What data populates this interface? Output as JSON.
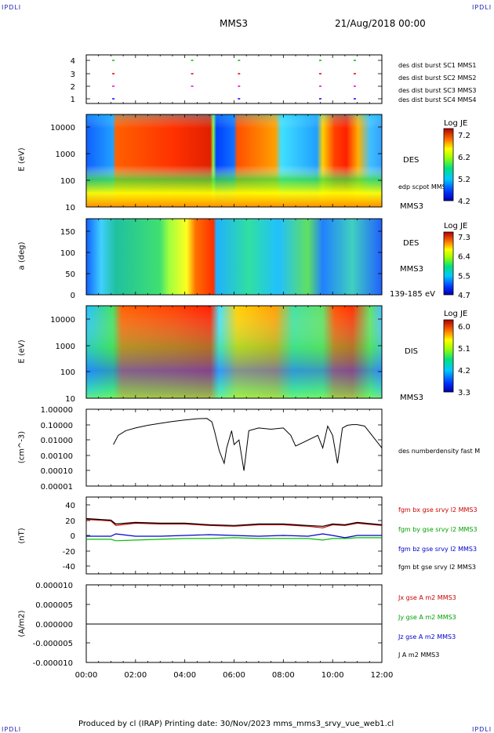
{
  "header": {
    "corner_left": "IPDLI",
    "corner_right": "IPDLI",
    "spacecraft": "MMS3",
    "date": "21/Aug/2018 00:00"
  },
  "footer": {
    "text": "Produced by cl (IRAP)   Printing date: 30/Nov/2023   mms_mms3_srvy_vue_web1.cl",
    "corner_left": "IPDLI",
    "corner_right": "IPDLI"
  },
  "time_axis": {
    "ticks": [
      "00:00",
      "02:00",
      "04:00",
      "06:00",
      "08:00",
      "10:00",
      "12:00"
    ],
    "range_hours": [
      0,
      12
    ]
  },
  "colors": {
    "c1": "#0000ff",
    "c2": "#e000e0",
    "c3": "#e00000",
    "c4": "#00c000",
    "bx": "#cc0000",
    "by": "#00c000",
    "bz": "#0000cc",
    "bt": "#000000"
  },
  "panels": {
    "burst": {
      "yticks": [
        "4",
        "3",
        "2",
        "1"
      ],
      "legend": [
        "des dist burst SC1 MMS1",
        "des dist burst SC2 MMS2",
        "des dist burst SC3 MMS3",
        "des dist burst SC4 MMS4"
      ]
    },
    "des_energy": {
      "ylabel": "E (eV)",
      "yticks": [
        "10000",
        "1000",
        "100",
        "10"
      ],
      "label": "DES",
      "label2": "edp scpot MMS3",
      "sc": "MMS3",
      "colorbar": {
        "title": "Log JE",
        "ticks": [
          "7.2",
          "6.2",
          "5.2",
          "4.2"
        ]
      }
    },
    "des_pitch": {
      "ylabel": "a (deg)",
      "yticks": [
        "150",
        "100",
        "50",
        "0"
      ],
      "label": "DES",
      "sc": "MMS3",
      "energy": "139-185 eV",
      "colorbar": {
        "title": "Log JE",
        "ticks": [
          "7.3",
          "6.4",
          "5.5",
          "4.7"
        ]
      }
    },
    "dis_energy": {
      "ylabel": "E (eV)",
      "yticks": [
        "10000",
        "1000",
        "100",
        "10"
      ],
      "label": "DIS",
      "sc": "MMS3",
      "colorbar": {
        "title": "Log JE",
        "ticks": [
          "6.0",
          "5.1",
          "4.2",
          "3.3"
        ]
      }
    },
    "density": {
      "ylabel": "(cm^-3)",
      "yticks": [
        "1.00000",
        "0.10000",
        "0.01000",
        "0.00100",
        "0.00010",
        "0.00001"
      ],
      "legend": "des numberdensity fast M"
    },
    "bfield": {
      "ylabel": "(nT)",
      "yticks": [
        "40",
        "20",
        "0",
        "-20",
        "-40"
      ],
      "legend": [
        "fgm bx gse srvy l2 MMS3",
        "fgm by gse srvy l2 MMS3",
        "fgm bz gse srvy l2 MMS3",
        "fgm bt gse srvy l2 MMS3"
      ]
    },
    "current": {
      "ylabel": "(A/m2)",
      "yticks": [
        "0.000010",
        "0.000005",
        "0.000000",
        "-0.000005",
        "-0.000010"
      ],
      "legend": [
        "Jx gse A m2 MMS3",
        "Jy gse A m2 MMS3",
        "Jz gse A m2 MMS3",
        "J A m2 MMS3"
      ]
    }
  },
  "chart_data": [
    {
      "type": "scatter",
      "panel": "burst",
      "xlabel": "",
      "ylabel": "",
      "series": [
        {
          "name": "des dist burst SC1 MMS1",
          "y": 1,
          "x": [
            1.1,
            6.2,
            9.5,
            10.9
          ]
        },
        {
          "name": "des dist burst SC2 MMS2",
          "y": 2,
          "x": [
            1.1,
            4.3,
            6.2,
            9.5,
            10.9
          ]
        },
        {
          "name": "des dist burst SC3 MMS3",
          "y": 3,
          "x": [
            1.1,
            4.3,
            6.2,
            9.5,
            10.9
          ]
        },
        {
          "name": "des dist burst SC4 MMS4",
          "y": 4,
          "x": [
            1.1,
            4.3,
            6.2,
            9.5,
            10.9
          ]
        }
      ]
    },
    {
      "type": "heatmap",
      "panel": "des_energy",
      "ylabel": "E (eV)",
      "ylim": [
        10,
        30000
      ],
      "yscale": "log",
      "colorbar": "Log JE",
      "zlim": [
        4.2,
        7.2
      ]
    },
    {
      "type": "heatmap",
      "panel": "des_pitch",
      "ylabel": "a (deg)",
      "ylim": [
        0,
        180
      ],
      "colorbar": "Log JE",
      "zlim": [
        4.7,
        7.3
      ]
    },
    {
      "type": "heatmap",
      "panel": "dis_energy",
      "ylabel": "E (eV)",
      "ylim": [
        10,
        30000
      ],
      "yscale": "log",
      "colorbar": "Log JE",
      "zlim": [
        3.3,
        6.0
      ]
    },
    {
      "type": "line",
      "panel": "density",
      "ylabel": "(cm^-3)",
      "yscale": "log",
      "ylim": [
        1e-05,
        1.0
      ],
      "series": [
        {
          "name": "des numberdensity fast M",
          "x": [
            1.1,
            1.3,
            1.6,
            2.0,
            2.5,
            3.0,
            3.5,
            4.0,
            4.5,
            4.9,
            5.1,
            5.2,
            5.4,
            5.6,
            5.7,
            5.9,
            6.0,
            6.2,
            6.4,
            6.6,
            7.0,
            7.5,
            8.0,
            8.3,
            8.5,
            9.4,
            9.6,
            9.8,
            10.0,
            10.2,
            10.4,
            10.6,
            10.8,
            11.0,
            11.3,
            11.6,
            12.0
          ],
          "y": [
            0.005,
            0.02,
            0.04,
            0.06,
            0.09,
            0.12,
            0.16,
            0.2,
            0.24,
            0.25,
            0.15,
            0.04,
            0.002,
            0.0003,
            0.003,
            0.04,
            0.005,
            0.01,
            0.0001,
            0.04,
            0.06,
            0.05,
            0.06,
            0.02,
            0.004,
            0.02,
            0.003,
            0.08,
            0.02,
            0.0003,
            0.06,
            0.09,
            0.1,
            0.1,
            0.08,
            0.02,
            0.003
          ]
        }
      ]
    },
    {
      "type": "line",
      "panel": "bfield",
      "ylabel": "(nT)",
      "ylim": [
        -50,
        50
      ],
      "x": [
        0,
        1.0,
        1.2,
        2.0,
        3.0,
        4.0,
        5.0,
        6.0,
        7.0,
        8.0,
        9.0,
        9.6,
        10.0,
        10.5,
        11.0,
        12.0
      ],
      "series": [
        {
          "name": "fgm bx gse srvy l2 MMS3",
          "values": [
            21,
            19,
            13,
            16,
            15,
            15,
            13,
            12,
            14,
            14,
            12,
            10,
            14,
            13,
            16,
            13
          ]
        },
        {
          "name": "fgm by gse srvy l2 MMS3",
          "values": [
            -5,
            -5,
            -7,
            -6,
            -5,
            -4,
            -4,
            -3,
            -4,
            -4,
            -4,
            -6,
            -4,
            -4,
            -3,
            -3
          ]
        },
        {
          "name": "fgm bz gse srvy l2 MMS3",
          "values": [
            -1,
            -1,
            2,
            -1,
            -1,
            0,
            1,
            0,
            -1,
            0,
            -1,
            2,
            0,
            -3,
            0,
            0
          ]
        },
        {
          "name": "fgm bt gse srvy l2 MMS3",
          "values": [
            22,
            20,
            15,
            17,
            16,
            16,
            14,
            13,
            15,
            15,
            13,
            12,
            15,
            14,
            17,
            14
          ]
        }
      ]
    },
    {
      "type": "line",
      "panel": "current",
      "ylabel": "(A/m2)",
      "ylim": [
        -1e-05,
        1e-05
      ],
      "x": [
        0,
        12
      ],
      "series": [
        {
          "name": "J A m2 MMS3",
          "values": [
            0,
            0
          ]
        }
      ]
    }
  ]
}
